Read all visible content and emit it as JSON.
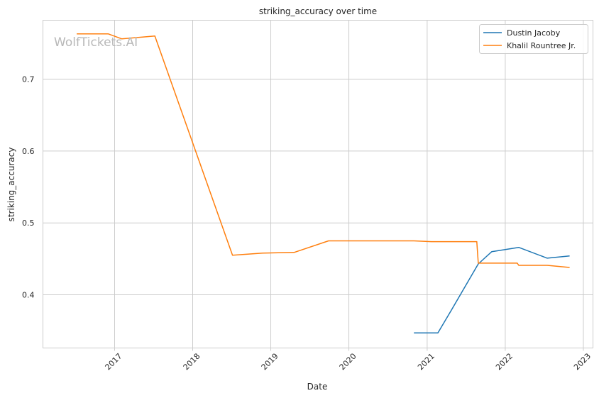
{
  "watermark": "WolfTickets.AI",
  "chart_data": {
    "type": "line",
    "title": "striking_accuracy over time",
    "xlabel": "Date",
    "ylabel": "striking_accuracy",
    "xlim": [
      "2016-02-01",
      "2023-02-15"
    ],
    "ylim": [
      0.326,
      0.782
    ],
    "x_ticks": [
      "2017-01-01",
      "2018-01-01",
      "2019-01-01",
      "2020-01-01",
      "2021-01-01",
      "2022-01-01",
      "2023-01-01"
    ],
    "x_tick_labels": [
      "2017",
      "2018",
      "2019",
      "2020",
      "2021",
      "2022",
      "2023"
    ],
    "y_ticks": [
      0.4,
      0.5,
      0.6,
      0.7
    ],
    "y_tick_labels": [
      "0.4",
      "0.5",
      "0.6",
      "0.7"
    ],
    "grid": true,
    "legend_position": "top-right",
    "colors": {
      "Dustin Jacoby": "#1f77b4",
      "Khalil Rountree Jr.": "#ff7f0e",
      "grid": "#cccccc",
      "axes": "#cccccc"
    },
    "series": [
      {
        "name": "Dustin Jacoby",
        "color": "#1f77b4",
        "points": [
          [
            "2020-10-31",
            0.347
          ],
          [
            "2021-02-20",
            0.347
          ],
          [
            "2021-04-17",
            0.375
          ],
          [
            "2021-08-28",
            0.443
          ],
          [
            "2021-10-30",
            0.46
          ],
          [
            "2022-03-05",
            0.466
          ],
          [
            "2022-07-16",
            0.451
          ],
          [
            "2022-10-29",
            0.454
          ]
        ]
      },
      {
        "name": "Khalil Rountree Jr.",
        "color": "#ff7f0e",
        "points": [
          [
            "2016-07-08",
            0.763
          ],
          [
            "2016-12-03",
            0.763
          ],
          [
            "2017-02-04",
            0.756
          ],
          [
            "2017-07-08",
            0.76
          ],
          [
            "2018-07-06",
            0.455
          ],
          [
            "2018-11-24",
            0.458
          ],
          [
            "2019-04-20",
            0.459
          ],
          [
            "2019-09-28",
            0.475
          ],
          [
            "2020-10-31",
            0.475
          ],
          [
            "2021-01-20",
            0.474
          ],
          [
            "2021-08-21",
            0.474
          ],
          [
            "2021-08-28",
            0.444
          ],
          [
            "2022-02-26",
            0.444
          ],
          [
            "2022-03-05",
            0.441
          ],
          [
            "2022-07-16",
            0.441
          ],
          [
            "2022-10-29",
            0.438
          ]
        ]
      }
    ]
  }
}
